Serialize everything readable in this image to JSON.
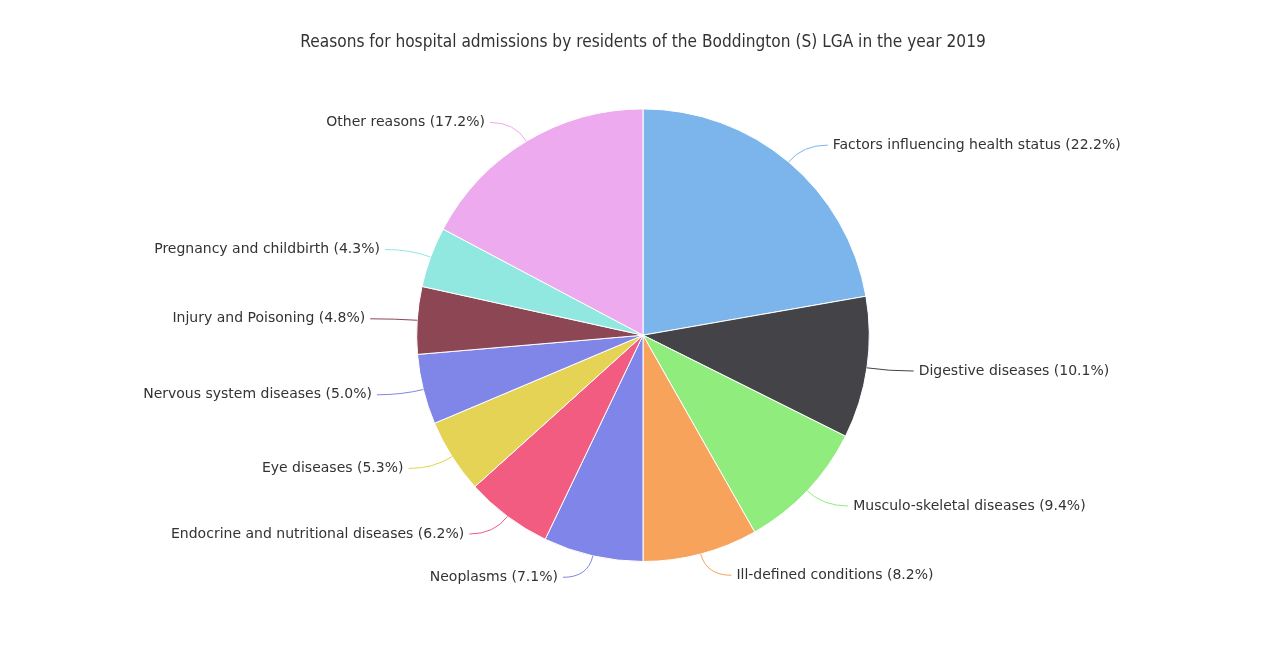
{
  "chart_data": {
    "type": "pie",
    "title": "Reasons for hospital admissions by residents of the Boddington (S) LGA in the year 2019",
    "categories": [
      "Factors influencing health status",
      "Digestive diseases",
      "Musculo-skeletal diseases",
      "Ill-defined conditions",
      "Neoplasms",
      "Endocrine and nutritional diseases",
      "Eye diseases",
      "Nervous system diseases",
      "Injury and Poisoning",
      "Pregnancy and childbirth",
      "Other reasons"
    ],
    "values": [
      22.2,
      10.1,
      9.4,
      8.2,
      7.1,
      6.2,
      5.3,
      5.0,
      4.8,
      4.3,
      17.2
    ],
    "value_labels": [
      "(22.2%)",
      "(10.1%)",
      "(9.4%)",
      "(8.2%)",
      "(7.1%)",
      "(6.2%)",
      "(5.3%)",
      "(5.0%)",
      "(4.8%)",
      "(4.3%)",
      "(17.2%)"
    ],
    "colors": [
      "#7cb5ec",
      "#434348",
      "#90ed7d",
      "#f7a35c",
      "#8085e9",
      "#f15c80",
      "#e4d354",
      "#8085e8",
      "#8d4653",
      "#91e8e1",
      "#eeaaee"
    ],
    "legend": false
  }
}
